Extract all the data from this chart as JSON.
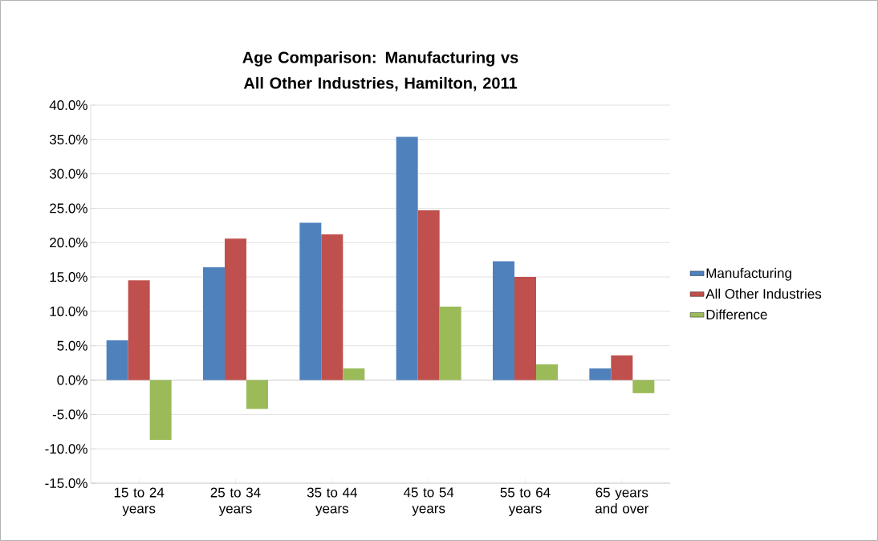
{
  "chart_data": {
    "type": "bar",
    "title": "Age Comparison: Manufacturing vs All Other Industries, Hamilton, 2011",
    "categories": [
      "15 to 24 years",
      "25 to 34 years",
      "35 to 44 years",
      "45 to 54 years",
      "55 to 64 years",
      "65 years and over"
    ],
    "series": [
      {
        "name": "Manufacturing",
        "color": "#4f81bd",
        "values": [
          5.8,
          16.4,
          22.9,
          35.4,
          17.3,
          1.7
        ]
      },
      {
        "name": "All Other Industries",
        "color": "#c0504d",
        "values": [
          14.5,
          20.6,
          21.2,
          24.7,
          15.0,
          3.6
        ]
      },
      {
        "name": "Difference",
        "color": "#9bbb59",
        "values": [
          -8.7,
          -4.2,
          1.7,
          10.7,
          2.3,
          -1.9
        ]
      }
    ],
    "ylim": [
      -15,
      40
    ],
    "yticks": [
      {
        "value": -15,
        "label": "-15.0%"
      },
      {
        "value": -10,
        "label": "-10.0%"
      },
      {
        "value": -5,
        "label": "-5.0%"
      },
      {
        "value": 0,
        "label": "0.0%"
      },
      {
        "value": 5,
        "label": "5.0%"
      },
      {
        "value": 10,
        "label": "10.0%"
      },
      {
        "value": 15,
        "label": "15.0%"
      },
      {
        "value": 20,
        "label": "20.0%"
      },
      {
        "value": 25,
        "label": "25.0%"
      },
      {
        "value": 30,
        "label": "30.0%"
      },
      {
        "value": 35,
        "label": "35.0%"
      },
      {
        "value": 40,
        "label": "40.0%"
      }
    ],
    "grid": "y",
    "legend": "right"
  }
}
